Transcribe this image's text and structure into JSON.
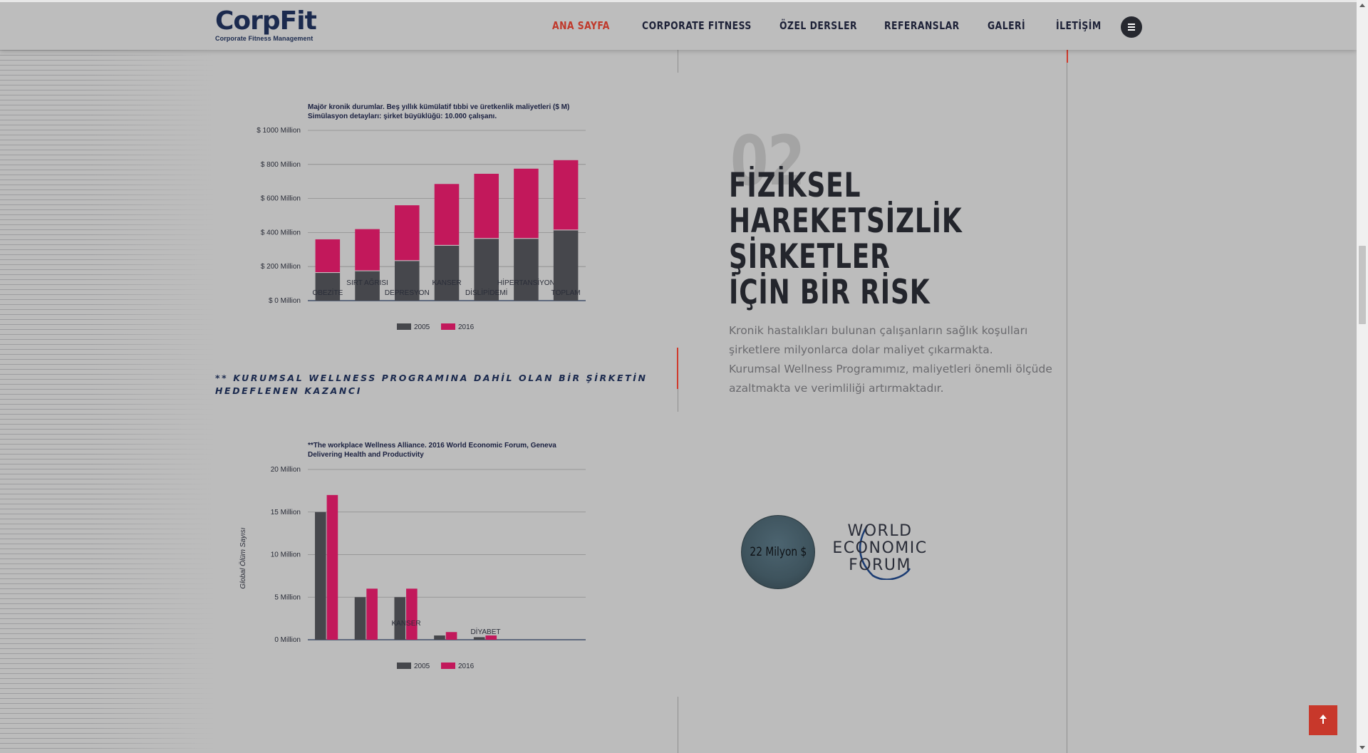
{
  "header": {
    "logo": {
      "name": "CorpFit",
      "tagline": "Corporate Fitness Management"
    },
    "nav": [
      {
        "label": "ANA SAYFA",
        "active": true
      },
      {
        "label": "CORPORATE FITNESS",
        "active": false
      },
      {
        "label": "ÖZEL DERSLER",
        "active": false
      },
      {
        "label": "REFERANSLAR",
        "active": false
      },
      {
        "label": "GALERİ",
        "active": false
      },
      {
        "label": "İLETİŞİM",
        "active": false
      }
    ],
    "menu_icon": "hamburger-icon"
  },
  "section": {
    "number": "02",
    "heading_lines": [
      "FİZİKSEL",
      "HAREKETSİZLİK",
      "ŞİRKETLER",
      "İÇİN BİR RİSK"
    ],
    "paragraph": "Kronik hastalıkları bulunan çalışanların sağlık koşulları şirketlere milyonlarca dolar maliyet çıkarmakta. Kurumsal Wellness Programımız, maliyetleri önemli ölçüde azaltmakta ve verimliliği artırmaktadır.",
    "caption": "** KURUMSAL WELLNESS PROGRAMINA DAHİL OLAN BİR ŞİRKETİN HEDEFLENEN KAZANCI",
    "stat": "22 Milyon $",
    "partner_logo": [
      "WORLD",
      "ECONOMIC",
      "FORUM"
    ]
  },
  "colors": {
    "accent": "#c0392b",
    "series_2005": "#46474c",
    "series_2016": "#c2185b",
    "heading": "#23252c"
  },
  "chart_data": [
    {
      "type": "bar",
      "stacked": true,
      "title": [
        "Majör kronik durumlar. Beş yıllık kümülatif tıbbi ve üretkenlik maliyetleri ($ M)",
        "Simülasyon detayları: şirket büyüklüğü: 10.000 çalışanı."
      ],
      "categories": [
        "OBEZİTE",
        "SIRT AĞRISI",
        "DEPRESYON",
        "KANSER",
        "DİSLİPİDEMİ",
        "HİPERTANSİYON",
        "TOPLAM"
      ],
      "series": [
        {
          "name": "2005",
          "values": [
            165,
            175,
            235,
            325,
            365,
            365,
            415
          ]
        },
        {
          "name": "2016",
          "values": [
            195,
            245,
            325,
            360,
            380,
            410,
            410
          ]
        }
      ],
      "yticks": [
        "$ 0 Million",
        "$ 200 Million",
        "$ 400 Million",
        "$ 600 Million",
        "$ 800 Million",
        "$ 1000 Million"
      ],
      "ylim": [
        0,
        1000
      ],
      "xlabel": "",
      "ylabel": "",
      "legend": "bottom",
      "grid": true
    },
    {
      "type": "bar",
      "stacked": false,
      "title": [
        "**The workplace Wellness Alliance. 2016 World Economic Forum, Geneva",
        "Delivering Health and Productivity"
      ],
      "categories": [
        "",
        "",
        "KANSER",
        "",
        "DİYABET",
        "",
        ""
      ],
      "series": [
        {
          "name": "2005",
          "values": [
            15,
            5,
            5,
            0.5,
            0.3,
            0,
            0
          ]
        },
        {
          "name": "2016",
          "values": [
            17,
            6,
            6,
            0.9,
            0.5,
            0,
            0
          ]
        }
      ],
      "yticks": [
        "0 Million",
        "5 Million",
        "10 Million",
        "15 Million",
        "20 Million"
      ],
      "ylim": [
        0,
        20
      ],
      "xlabel": "",
      "ylabel": "Global Ölüm Sayısı",
      "legend": "bottom",
      "grid": true
    }
  ]
}
